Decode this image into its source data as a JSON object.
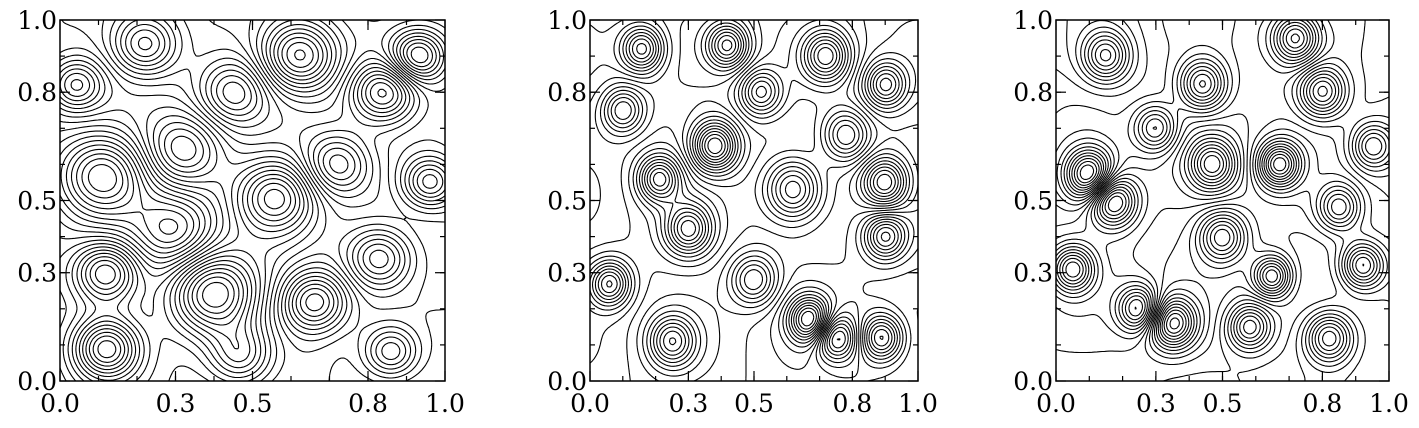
{
  "chart_data": [
    {
      "type": "contour",
      "title": "",
      "xlabel": "",
      "ylabel": "",
      "xlim": [
        0.0,
        1.0
      ],
      "ylim": [
        0.0,
        1.0
      ],
      "x_ticks": [
        "0.0",
        "0.3",
        "0.5",
        "0.8",
        "1.0"
      ],
      "y_ticks": [
        "0.0",
        "0.3",
        "0.5",
        "0.8",
        "1.0"
      ],
      "features": [
        {
          "x": 0.12,
          "y": 0.3,
          "a": 1.0,
          "s": 0.06
        },
        {
          "x": 0.12,
          "y": 0.09,
          "a": 1.1,
          "s": 0.06
        },
        {
          "x": 0.4,
          "y": 0.24,
          "a": 1.2,
          "s": 0.08
        },
        {
          "x": 0.66,
          "y": 0.22,
          "a": -0.9,
          "s": 0.06
        },
        {
          "x": 0.56,
          "y": 0.51,
          "a": 0.9,
          "s": 0.07
        },
        {
          "x": 0.11,
          "y": 0.57,
          "a": -1.0,
          "s": 0.08
        },
        {
          "x": 0.62,
          "y": 0.9,
          "a": 1.1,
          "s": 0.07
        },
        {
          "x": 0.22,
          "y": 0.93,
          "a": -0.8,
          "s": 0.06
        },
        {
          "x": 0.93,
          "y": 0.9,
          "a": 0.9,
          "s": 0.05
        },
        {
          "x": 0.84,
          "y": 0.8,
          "a": -1.0,
          "s": 0.06
        },
        {
          "x": 0.83,
          "y": 0.34,
          "a": 0.8,
          "s": 0.06
        },
        {
          "x": 0.32,
          "y": 0.64,
          "a": 0.7,
          "s": 0.07
        },
        {
          "x": 0.86,
          "y": 0.08,
          "a": -0.7,
          "s": 0.05
        },
        {
          "x": 0.47,
          "y": 0.07,
          "a": 0.7,
          "s": 0.06
        },
        {
          "x": 0.3,
          "y": 0.42,
          "a": -0.6,
          "s": 0.07
        },
        {
          "x": 0.72,
          "y": 0.6,
          "a": -0.7,
          "s": 0.06
        },
        {
          "x": 0.96,
          "y": 0.55,
          "a": 0.8,
          "s": 0.05
        },
        {
          "x": 0.45,
          "y": 0.8,
          "a": -0.6,
          "s": 0.06
        },
        {
          "x": 0.04,
          "y": 0.82,
          "a": 0.7,
          "s": 0.05
        }
      ]
    },
    {
      "type": "contour",
      "title": "",
      "xlabel": "",
      "ylabel": "",
      "xlim": [
        0.0,
        1.0
      ],
      "ylim": [
        0.0,
        1.0
      ],
      "x_ticks": [
        "0.0",
        "0.3",
        "0.5",
        "0.8",
        "1.0"
      ],
      "y_ticks": [
        "0.0",
        "0.3",
        "0.5",
        "0.8",
        "1.0"
      ],
      "features": [
        {
          "x": 0.3,
          "y": 0.42,
          "a": 1.0,
          "s": 0.05
        },
        {
          "x": 0.38,
          "y": 0.65,
          "a": -1.3,
          "s": 0.05
        },
        {
          "x": 0.21,
          "y": 0.56,
          "a": 1.0,
          "s": 0.045
        },
        {
          "x": 0.62,
          "y": 0.53,
          "a": 1.0,
          "s": 0.06
        },
        {
          "x": 0.9,
          "y": 0.55,
          "a": -1.1,
          "s": 0.05
        },
        {
          "x": 0.9,
          "y": 0.4,
          "a": 0.9,
          "s": 0.045
        },
        {
          "x": 0.67,
          "y": 0.17,
          "a": 1.2,
          "s": 0.045
        },
        {
          "x": 0.75,
          "y": 0.12,
          "a": -1.0,
          "s": 0.045
        },
        {
          "x": 0.89,
          "y": 0.12,
          "a": 1.0,
          "s": 0.045
        },
        {
          "x": 0.25,
          "y": 0.11,
          "a": -0.9,
          "s": 0.05
        },
        {
          "x": 0.06,
          "y": 0.27,
          "a": 1.0,
          "s": 0.045
        },
        {
          "x": 0.16,
          "y": 0.92,
          "a": 1.0,
          "s": 0.045
        },
        {
          "x": 0.42,
          "y": 0.93,
          "a": -1.0,
          "s": 0.045
        },
        {
          "x": 0.72,
          "y": 0.9,
          "a": 1.0,
          "s": 0.05
        },
        {
          "x": 0.9,
          "y": 0.82,
          "a": -0.9,
          "s": 0.045
        },
        {
          "x": 0.5,
          "y": 0.28,
          "a": -0.8,
          "s": 0.05
        },
        {
          "x": 0.78,
          "y": 0.68,
          "a": 0.8,
          "s": 0.05
        },
        {
          "x": 0.1,
          "y": 0.75,
          "a": -0.8,
          "s": 0.045
        },
        {
          "x": 0.52,
          "y": 0.8,
          "a": 0.8,
          "s": 0.045
        }
      ]
    },
    {
      "type": "contour",
      "title": "",
      "xlabel": "",
      "ylabel": "",
      "xlim": [
        0.0,
        1.0
      ],
      "ylim": [
        0.0,
        1.0
      ],
      "x_ticks": [
        "0.0",
        "0.3",
        "0.5",
        "0.8",
        "1.0"
      ],
      "y_ticks": [
        "0.0",
        "0.3",
        "0.5",
        "0.8",
        "1.0"
      ],
      "features": [
        {
          "x": 0.1,
          "y": 0.57,
          "a": 1.3,
          "s": 0.05
        },
        {
          "x": 0.17,
          "y": 0.5,
          "a": -1.2,
          "s": 0.05
        },
        {
          "x": 0.67,
          "y": 0.6,
          "a": 1.2,
          "s": 0.045
        },
        {
          "x": 0.47,
          "y": 0.6,
          "a": -1.0,
          "s": 0.05
        },
        {
          "x": 0.35,
          "y": 0.16,
          "a": 1.2,
          "s": 0.05
        },
        {
          "x": 0.25,
          "y": 0.2,
          "a": -1.0,
          "s": 0.045
        },
        {
          "x": 0.65,
          "y": 0.29,
          "a": 1.0,
          "s": 0.04
        },
        {
          "x": 0.72,
          "y": 0.95,
          "a": 1.1,
          "s": 0.05
        },
        {
          "x": 0.15,
          "y": 0.9,
          "a": -0.9,
          "s": 0.05
        },
        {
          "x": 0.8,
          "y": 0.8,
          "a": -1.0,
          "s": 0.05
        },
        {
          "x": 0.92,
          "y": 0.32,
          "a": 1.0,
          "s": 0.045
        },
        {
          "x": 0.05,
          "y": 0.31,
          "a": -1.0,
          "s": 0.045
        },
        {
          "x": 0.44,
          "y": 0.82,
          "a": 1.0,
          "s": 0.05
        },
        {
          "x": 0.82,
          "y": 0.12,
          "a": 1.0,
          "s": 0.05
        },
        {
          "x": 0.58,
          "y": 0.15,
          "a": -0.9,
          "s": 0.045
        },
        {
          "x": 0.5,
          "y": 0.4,
          "a": 0.9,
          "s": 0.05
        },
        {
          "x": 0.95,
          "y": 0.65,
          "a": -0.8,
          "s": 0.045
        },
        {
          "x": 0.3,
          "y": 0.7,
          "a": 0.8,
          "s": 0.045
        },
        {
          "x": 0.85,
          "y": 0.48,
          "a": 0.8,
          "s": 0.045
        }
      ]
    }
  ]
}
